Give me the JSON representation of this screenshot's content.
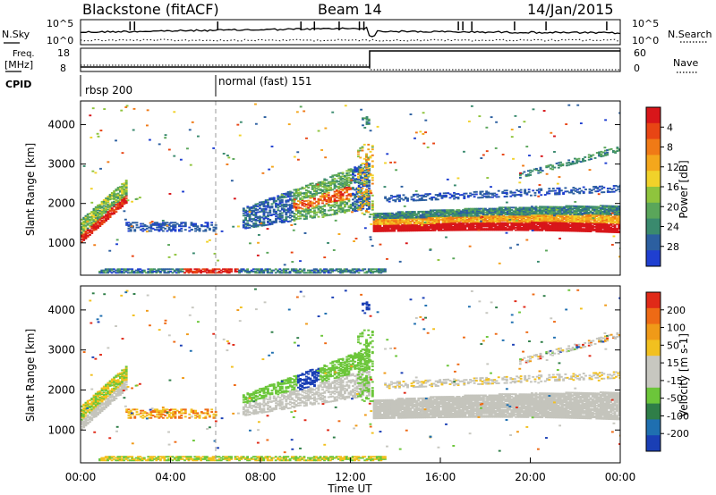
{
  "header": {
    "title": "Blackstone (fitACF)",
    "beam": "Beam 14",
    "date": "14/Jan/2015"
  },
  "panels": {
    "nsky": {
      "label": "N.Sky",
      "ticks_left": [
        "10^5",
        "10^0"
      ],
      "ticks_right": [
        "10^5",
        "10^0"
      ],
      "right_label": "N.Search"
    },
    "freq": {
      "label_line1": "Freq.",
      "label_line2": "[MHz]",
      "ticks_left": [
        "18",
        "8"
      ],
      "ticks_right": [
        "60",
        "0"
      ],
      "right_label": "Nave"
    },
    "cpid": {
      "label": "CPID",
      "modes": [
        {
          "label": "rbsp 200",
          "start_hour": 0
        },
        {
          "label": "normal (fast) 151",
          "start_hour": 6
        }
      ]
    }
  },
  "axes": {
    "xlabel": "Time UT",
    "x_ticks": [
      "00:00",
      "04:00",
      "08:00",
      "12:00",
      "16:00",
      "20:00",
      "00:00"
    ],
    "x_range_hours": [
      0,
      24
    ],
    "ylabel": "Slant Range [km]",
    "y_ticks": [
      "1000",
      "2000",
      "3000",
      "4000"
    ],
    "y_range_km": [
      180,
      4600
    ]
  },
  "chart_data": [
    {
      "type": "heatmap",
      "name": "power",
      "colorbar_label": "Power [dB]",
      "colorbar_ticks": [
        "4",
        "8",
        "12",
        "16",
        "20",
        "24",
        "28"
      ],
      "colorscale": [
        "#1f3fd0",
        "#2c5fa0",
        "#3a8a6e",
        "#5aa65a",
        "#8fc43d",
        "#f1d22a",
        "#f4a71c",
        "#f07a16",
        "#e84514",
        "#d8161a"
      ]
    },
    {
      "type": "heatmap",
      "name": "velocity",
      "colorbar_label": "Velocity [m s-1]",
      "colorbar_ticks": [
        "200",
        "100",
        "50",
        "15",
        "-15",
        "-50",
        "-100",
        "-200"
      ],
      "colorscale": [
        "#1a3fb5",
        "#1f6fb0",
        "#2f7e48",
        "#6cc63a",
        "#c7c7c0",
        "#c7c7c0",
        "#f2c01f",
        "#f09a18",
        "#ee6a15",
        "#e02a18"
      ],
      "ground_scatter_color": "#c4c4bc"
    }
  ]
}
